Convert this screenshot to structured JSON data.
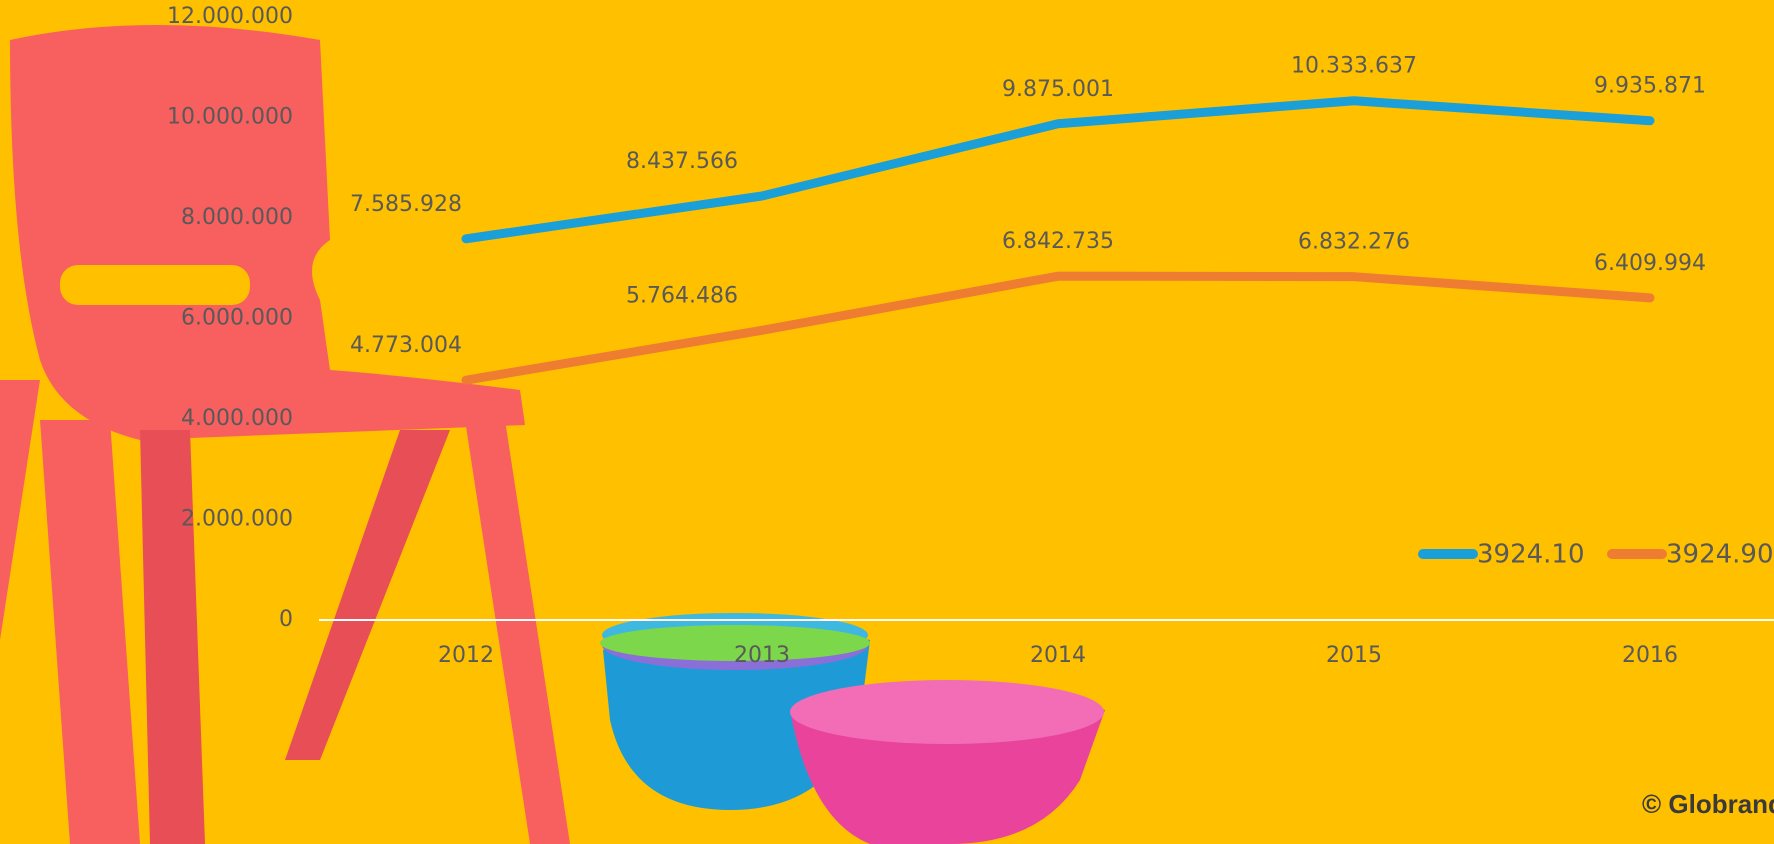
{
  "chart_data": {
    "type": "line",
    "categories": [
      "2012",
      "2013",
      "2014",
      "2015",
      "2016"
    ],
    "series": [
      {
        "name": "3924.10",
        "color": "#1a9fd8",
        "values": [
          7585928,
          8437566,
          9875001,
          10333637,
          9935871
        ],
        "value_labels": [
          "7.585.928",
          "8.437.566",
          "9.875.001",
          "10.333.637",
          "9.935.871"
        ]
      },
      {
        "name": "3924.90",
        "color": "#ef7d31",
        "values": [
          4773004,
          5764486,
          6842735,
          6832276,
          6409994
        ],
        "value_labels": [
          "4.773.004",
          "5.764.486",
          "6.842.735",
          "6.832.276",
          "6.409.994"
        ]
      }
    ],
    "ylim": [
      0,
      12000000
    ],
    "yticks": [
      {
        "value": 0,
        "label": "0"
      },
      {
        "value": 2000000,
        "label": "2.000.000"
      },
      {
        "value": 4000000,
        "label": "4.000.000"
      },
      {
        "value": 6000000,
        "label": "6.000.000"
      },
      {
        "value": 8000000,
        "label": "8.000.000"
      },
      {
        "value": 10000000,
        "label": "10.000.000"
      },
      {
        "value": 12000000,
        "label": "12.000.000"
      }
    ],
    "legend": "right",
    "annotation": "© Globrand"
  }
}
